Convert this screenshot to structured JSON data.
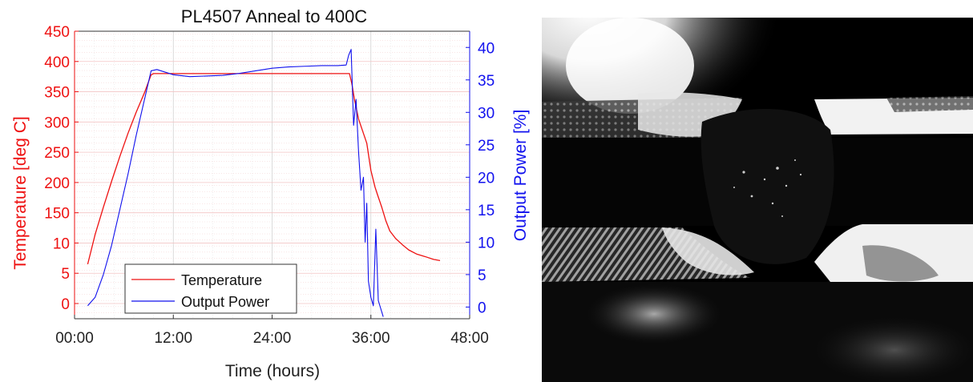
{
  "chart_data": {
    "type": "line",
    "title": "PL4507 Anneal to 400C",
    "xlabel": "Time (hours)",
    "ylabel_left": "Temperature [deg C]",
    "ylabel_right": "Output Power [%]",
    "x_unit": "hours",
    "xlim": [
      0,
      48
    ],
    "x_ticks": [
      0,
      12,
      24,
      36,
      48
    ],
    "x_tick_labels": [
      "00:00",
      "12:00",
      "24:00",
      "36:00",
      "48:00"
    ],
    "y_left_tick_labels": [
      "0",
      "5",
      "10",
      "150",
      "200",
      "250",
      "300",
      "350",
      "400",
      "450"
    ],
    "y_right_ticks": [
      0,
      5,
      10,
      15,
      20,
      25,
      30,
      35,
      40
    ],
    "y_right_lim": [
      -1.8,
      42.5
    ],
    "grid": true,
    "legend_position": "bottom-left",
    "series": [
      {
        "name": "Temperature",
        "axis": "left",
        "color": "#ee1111",
        "x": [
          1.6,
          2.5,
          3.5,
          4.5,
          5.5,
          6.5,
          7.5,
          8.5,
          9.3,
          9.6,
          12,
          18,
          24,
          30,
          33.4,
          33.7,
          34.0,
          34.5,
          35.0,
          35.5,
          36.0,
          36.5,
          36.8,
          37.3,
          37.8,
          38.3,
          39.0,
          39.8,
          40.6,
          41.6,
          42.6,
          43.6,
          44.4
        ],
        "y": [
          1.3,
          2.28,
          3.18,
          4.04,
          4.86,
          5.63,
          6.33,
          6.97,
          7.56,
          7.6,
          7.6,
          7.6,
          7.6,
          7.6,
          7.6,
          7.25,
          6.75,
          6.1,
          5.7,
          5.3,
          4.4,
          3.85,
          3.6,
          3.2,
          2.75,
          2.4,
          2.15,
          1.95,
          1.77,
          1.63,
          1.55,
          1.46,
          1.42
        ]
      },
      {
        "name": "Output Power",
        "axis": "right",
        "color": "#1111ee",
        "x": [
          1.6,
          2.5,
          3.5,
          4.5,
          5.5,
          6.5,
          7.5,
          8.5,
          9.3,
          10,
          12,
          14,
          16,
          18,
          20,
          22,
          24,
          26,
          28,
          30,
          32,
          33.0,
          33.3,
          33.6,
          33.9,
          34.2,
          34.5,
          34.8,
          35.1,
          35.3,
          35.5,
          35.7,
          36.0,
          36.3,
          36.6,
          36.9,
          37.5
        ],
        "y": [
          0.2,
          1.5,
          5.0,
          9.5,
          15.0,
          20.5,
          26.5,
          32.0,
          36.4,
          36.6,
          35.8,
          35.5,
          35.6,
          35.7,
          36.0,
          36.4,
          36.8,
          37.0,
          37.1,
          37.2,
          37.2,
          37.3,
          38.8,
          39.7,
          28.0,
          32.0,
          24.0,
          18.0,
          20.0,
          10.0,
          16.0,
          4.0,
          1.5,
          0.2,
          12.0,
          1.0,
          -1.5
        ]
      }
    ]
  },
  "photo": {
    "type": "grayscale-microscope-image",
    "background": "#000000"
  }
}
